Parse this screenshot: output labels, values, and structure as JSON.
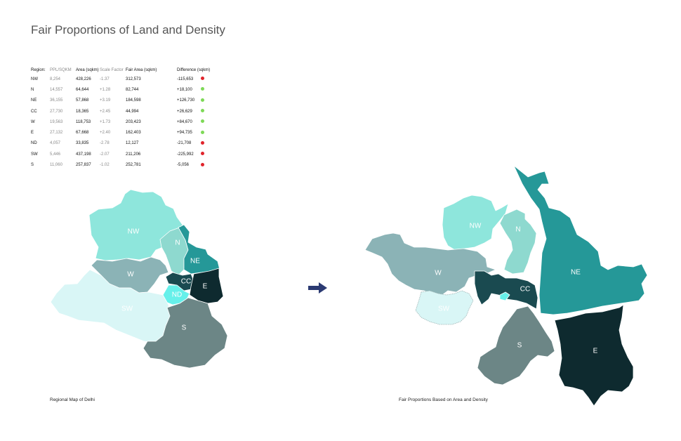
{
  "title": "Fair Proportions of Land and Density",
  "colors": {
    "up": "#7ed957",
    "down": "#e0242b",
    "NW": "#8ee6dc",
    "N": "#8ed9cf",
    "NE": "#259898",
    "CC": "#1a4a50",
    "W": "#8bb3b6",
    "E": "#0e2a2f",
    "ND": "#66f0ea",
    "SW": "#d9f6f6",
    "S": "#6c8686"
  },
  "table": {
    "headers": [
      "Region:",
      "PPL/SQKM",
      "Area (sqkm)",
      "Scale Factor",
      "Fair Area (sqkm)",
      "Difference (sqkm)"
    ],
    "rows": [
      {
        "region": "NW",
        "ppl": "8,254",
        "area": "428,226",
        "scale": "-1.37",
        "fair": "312,573",
        "diff": "-115,653",
        "trend": "down"
      },
      {
        "region": "N",
        "ppl": "14,557",
        "area": "64,644",
        "scale": "+1.28",
        "fair": "82,744",
        "diff": "+18,100",
        "trend": "up"
      },
      {
        "region": "NE",
        "ppl": "36,155",
        "area": "57,868",
        "scale": "+3.19",
        "fair": "184,598",
        "diff": "+126,730",
        "trend": "up"
      },
      {
        "region": "CC",
        "ppl": "27,730",
        "area": "18,365",
        "scale": "+2.45",
        "fair": "44,994",
        "diff": "+26,629",
        "trend": "up"
      },
      {
        "region": "W",
        "ppl": "19,563",
        "area": "118,753",
        "scale": "+1.73",
        "fair": "203,423",
        "diff": "+84,670",
        "trend": "up"
      },
      {
        "region": "E",
        "ppl": "27,132",
        "area": "67,668",
        "scale": "+2.40",
        "fair": "162,403",
        "diff": "+94,735",
        "trend": "up"
      },
      {
        "region": "ND",
        "ppl": "4,057",
        "area": "33,835",
        "scale": "-2.78",
        "fair": "12,127",
        "diff": "-21,708",
        "trend": "down"
      },
      {
        "region": "SW",
        "ppl": "5,446",
        "area": "437,198",
        "scale": "-2.07",
        "fair": "211,206",
        "diff": "-225,992",
        "trend": "down"
      },
      {
        "region": "S",
        "ppl": "11,060",
        "area": "257,837",
        "scale": "-1.02",
        "fair": "252,781",
        "diff": "-5,056",
        "trend": "down"
      }
    ]
  },
  "map_left": {
    "caption": "Regional Map of Delhi",
    "labels": {
      "NW": "NW",
      "N": "N",
      "NE": "NE",
      "W": "W",
      "CC": "CC",
      "E": "E",
      "ND": "ND",
      "SW": "SW",
      "S": "S"
    }
  },
  "map_right": {
    "caption": "Fair Proportions Based on Area and Density",
    "labels": {
      "NW": "NW",
      "N": "N",
      "NE": "NE",
      "W": "W",
      "CC": "CC",
      "E": "E",
      "SW": "SW",
      "S": "S"
    }
  },
  "arrow_icon": "right-arrow-icon"
}
